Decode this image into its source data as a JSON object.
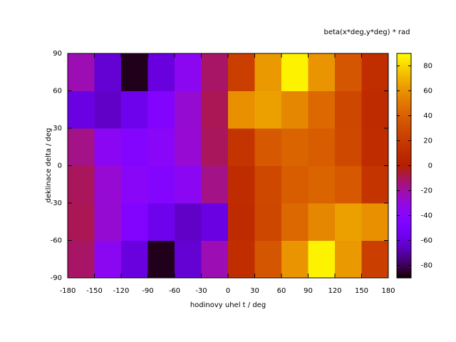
{
  "chart_data": {
    "type": "heatmap",
    "title": "beta(x*deg,y*deg) * rad",
    "x_label": "hodinovy uhel  t / deg",
    "y_label": "deklinace  delta / deg",
    "x": [
      -165,
      -135,
      -105,
      -75,
      -45,
      -15,
      15,
      45,
      75,
      105,
      135,
      165
    ],
    "y": [
      -75,
      -45,
      -15,
      15,
      45,
      75
    ],
    "z": [
      [
        -11.8,
        -35.5,
        -60.0,
        -87.0,
        -62.1,
        -22.5,
        11.8,
        35.5,
        60.0,
        87.0,
        62.1,
        22.5
      ],
      [
        -9.6,
        -27.8,
        -43.3,
        -55.7,
        -64.2,
        -58.9,
        9.6,
        27.8,
        43.3,
        55.7,
        64.2,
        58.9
      ],
      [
        -10.5,
        -27.9,
        -38.4,
        -41.7,
        -36.2,
        -16.0,
        10.5,
        27.9,
        38.4,
        41.7,
        36.2,
        16.0
      ],
      [
        -16.0,
        -36.2,
        -41.7,
        -38.4,
        -27.9,
        -10.5,
        16.0,
        36.2,
        41.7,
        38.4,
        27.9,
        10.5
      ],
      [
        -58.9,
        -64.2,
        -55.7,
        -43.3,
        -27.8,
        -9.6,
        58.9,
        64.2,
        55.7,
        43.3,
        27.8,
        9.6
      ],
      [
        -22.5,
        -62.1,
        -87.0,
        -60.0,
        -35.5,
        -11.8,
        22.5,
        62.1,
        87.0,
        60.0,
        35.5,
        11.8
      ]
    ],
    "xlim": [
      -180,
      180
    ],
    "xticks": [
      -180,
      -150,
      -120,
      -90,
      -60,
      -30,
      0,
      30,
      60,
      90,
      120,
      150,
      180
    ],
    "ylim": [
      -90,
      90
    ],
    "yticks": [
      -90,
      -60,
      -30,
      0,
      30,
      60,
      90
    ],
    "zlim": [
      -90,
      90
    ],
    "zticks": [
      -80,
      -60,
      -40,
      -20,
      0,
      20,
      40,
      60,
      80
    ],
    "palette": "rgbformulae 7,5,15"
  }
}
